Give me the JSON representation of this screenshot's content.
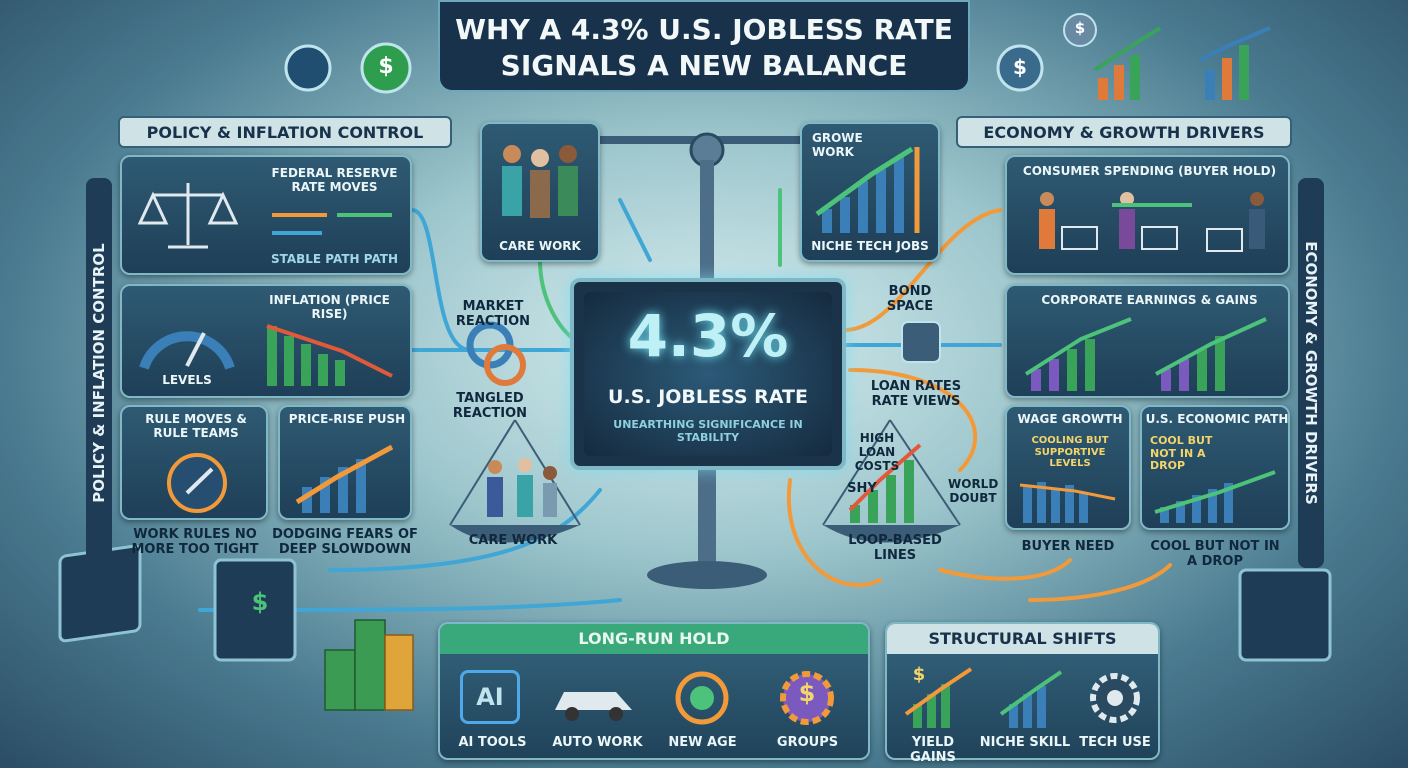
{
  "header": {
    "title_lines": [
      "WHY A 4.3% U.S. JOBLESS RATE",
      "SIGNALS A NEW BALANCE"
    ]
  },
  "currency_symbol": "$",
  "left": {
    "title": "POLICY & INFLATION CONTROL",
    "panels": [
      {
        "label": "FEDERAL RESERVE RATE MOVES",
        "caption": "STABLE PATH PATH"
      },
      {
        "label": "INFLATION (PRICE RISE)",
        "caption": "LEVELS"
      },
      {
        "label": "RULE MOVES & RULE TEAMS",
        "caption": "WORK RULES NO MORE TOO TIGHT"
      },
      {
        "label": "PRICE-RISE PUSH",
        "caption": "DODGING FEARS OF DEEP SLOWDOWN"
      }
    ]
  },
  "center": {
    "top_left_card": "CARE WORK",
    "top_right_card": {
      "heading": "GROWE WORK",
      "label": "NICHE TECH JOBS"
    },
    "market_reaction": "MARKET REACTION",
    "tangled_reaction": "TANGLED REACTION",
    "big_value": "4.3%",
    "big_label": "U.S. JOBLESS RATE",
    "subtitle": "UNEARTHING SIGNIFICANCE IN STABILITY",
    "left_pan": "CARE WORK",
    "bond_space": "BOND SPACE",
    "loan_rates": "LOAN RATES RATE VIEWS",
    "high_loan_costs": "HIGH LOAN COSTS",
    "shy": "SHY",
    "world_doubt": "WORLD DOUBT",
    "right_pan": "LOOP-BASED LINES"
  },
  "right": {
    "title": "ECONOMY & GROWTH DRIVERS",
    "panels": [
      {
        "label": "CONSUMER SPENDING (BUYER HOLD)"
      },
      {
        "label": "CORPORATE EARNINGS & GAINS"
      },
      {
        "label": "WAGE GROWTH",
        "sublabel": "COOLING BUT SUPPORTIVE LEVELS",
        "caption": "BUYER NEED"
      },
      {
        "label": "U.S. ECONOMIC PATH",
        "sublabel": "COOL BUT NOT IN A DROP",
        "caption": "COOL BUT NOT IN A DROP"
      }
    ]
  },
  "bottom": {
    "long_run": {
      "title": "LONG-RUN HOLD",
      "icon_text": "AI",
      "items": [
        "AI TOOLS",
        "AUTO WORK",
        "NEW AGE",
        "GROUPS"
      ]
    },
    "structural": {
      "title": "STRUCTURAL SHIFTS",
      "items": [
        "YIELD GAINS",
        "NICHE SKILL",
        "TECH USE"
      ]
    }
  }
}
